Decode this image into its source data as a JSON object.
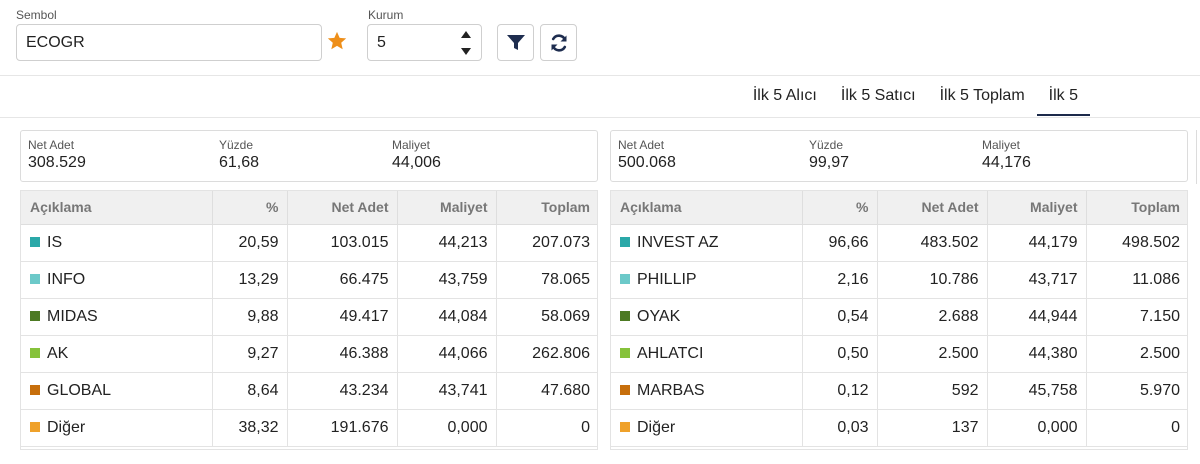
{
  "controls": {
    "symbol_label": "Sembol",
    "symbol_value": "ECOGR",
    "broker_count_label": "Kurum",
    "broker_count_value": "5"
  },
  "tabs": [
    {
      "label": "İlk 5 Alıcı",
      "active": false
    },
    {
      "label": "İlk 5 Satıcı",
      "active": false
    },
    {
      "label": "İlk 5 Toplam",
      "active": false
    },
    {
      "label": "İlk 5",
      "active": true
    }
  ],
  "columns": {
    "desc": "Açıklama",
    "pct": "%",
    "net": "Net Adet",
    "cost": "Maliyet",
    "total": "Toplam"
  },
  "summary_labels": {
    "net": "Net Adet",
    "pct": "Yüzde",
    "cost": "Maliyet"
  },
  "colors": {
    "IS": "#2aa8a8",
    "INFO": "#6cc9c9",
    "MIDAS": "#4d7a23",
    "AK": "#86c23b",
    "GLOBAL": "#c76f0c",
    "Diger": "#efa12a"
  },
  "buyers": {
    "summary": {
      "net": "308.529",
      "pct": "61,68",
      "cost": "44,006"
    },
    "rows": [
      {
        "name": "IS",
        "color": "#2aa8a8",
        "pct": "20,59",
        "net": "103.015",
        "cost": "44,213",
        "total": "207.073"
      },
      {
        "name": "INFO",
        "color": "#6cc9c9",
        "pct": "13,29",
        "net": "66.475",
        "cost": "43,759",
        "total": "78.065"
      },
      {
        "name": "MIDAS",
        "color": "#4d7a23",
        "pct": "9,88",
        "net": "49.417",
        "cost": "44,084",
        "total": "58.069"
      },
      {
        "name": "AK",
        "color": "#86c23b",
        "pct": "9,27",
        "net": "46.388",
        "cost": "44,066",
        "total": "262.806"
      },
      {
        "name": "GLOBAL",
        "color": "#c76f0c",
        "pct": "8,64",
        "net": "43.234",
        "cost": "43,741",
        "total": "47.680"
      },
      {
        "name": "Diğer",
        "color": "#efa12a",
        "pct": "38,32",
        "net": "191.676",
        "cost": "0,000",
        "total": "0"
      }
    ]
  },
  "sellers": {
    "summary": {
      "net": "500.068",
      "pct": "99,97",
      "cost": "44,176"
    },
    "rows": [
      {
        "name": "INVEST AZ",
        "color": "#2aa8a8",
        "pct": "96,66",
        "net": "483.502",
        "cost": "44,179",
        "total": "498.502"
      },
      {
        "name": "PHILLIP",
        "color": "#6cc9c9",
        "pct": "2,16",
        "net": "10.786",
        "cost": "43,717",
        "total": "11.086"
      },
      {
        "name": "OYAK",
        "color": "#4d7a23",
        "pct": "0,54",
        "net": "2.688",
        "cost": "44,944",
        "total": "7.150"
      },
      {
        "name": "AHLATCI",
        "color": "#86c23b",
        "pct": "0,50",
        "net": "2.500",
        "cost": "44,380",
        "total": "2.500"
      },
      {
        "name": "MARBAS",
        "color": "#c76f0c",
        "pct": "0,12",
        "net": "592",
        "cost": "45,758",
        "total": "5.970"
      },
      {
        "name": "Diğer",
        "color": "#efa12a",
        "pct": "0,03",
        "net": "137",
        "cost": "0,000",
        "total": "0"
      }
    ]
  }
}
